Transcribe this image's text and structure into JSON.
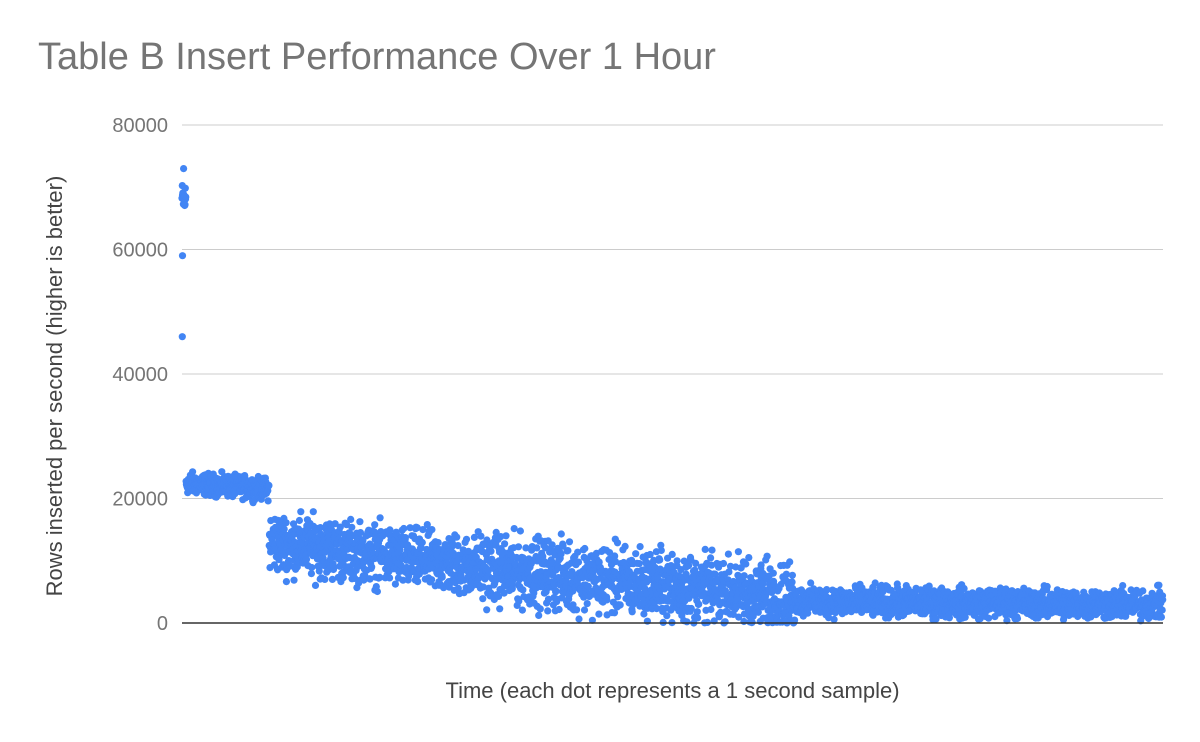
{
  "chart_data": {
    "type": "scatter",
    "title": "Table B Insert Performance Over 1 Hour",
    "xlabel": "Time (each dot represents a 1 second sample)",
    "ylabel": "Rows inserted per second (higher is better)",
    "ylim": [
      0,
      80000
    ],
    "yticks": [
      "0",
      "20000",
      "40000",
      "60000",
      "80000"
    ],
    "xlim": [
      0,
      3600
    ],
    "grid": true,
    "x_tick_labels_shown": false,
    "series": [
      {
        "color": "#4285F4",
        "sample_count": 3600,
        "segments": [
          {
            "x": [
              0,
              15
            ],
            "y_center": [
              68000,
              68000
            ],
            "y_spread": 4000,
            "note": "initial samples, with outliers 59000 and 46000"
          },
          {
            "x": [
              15,
              320
            ],
            "y_center": [
              22500,
              21500
            ],
            "y_spread": 2500
          },
          {
            "x": [
              320,
              1080
            ],
            "y_center": [
              13000,
              9000
            ],
            "y_spread": 7000
          },
          {
            "x": [
              1080,
              2250
            ],
            "y_center": [
              9000,
              4000
            ],
            "y_spread": 8000
          },
          {
            "x": [
              2250,
              3600
            ],
            "y_center": [
              3500,
              3000
            ],
            "y_spread": 3500
          }
        ],
        "outliers": [
          {
            "x": 2,
            "y": 59000
          },
          {
            "x": 1,
            "y": 46000
          },
          {
            "x": 6,
            "y": 73000
          }
        ]
      }
    ]
  }
}
